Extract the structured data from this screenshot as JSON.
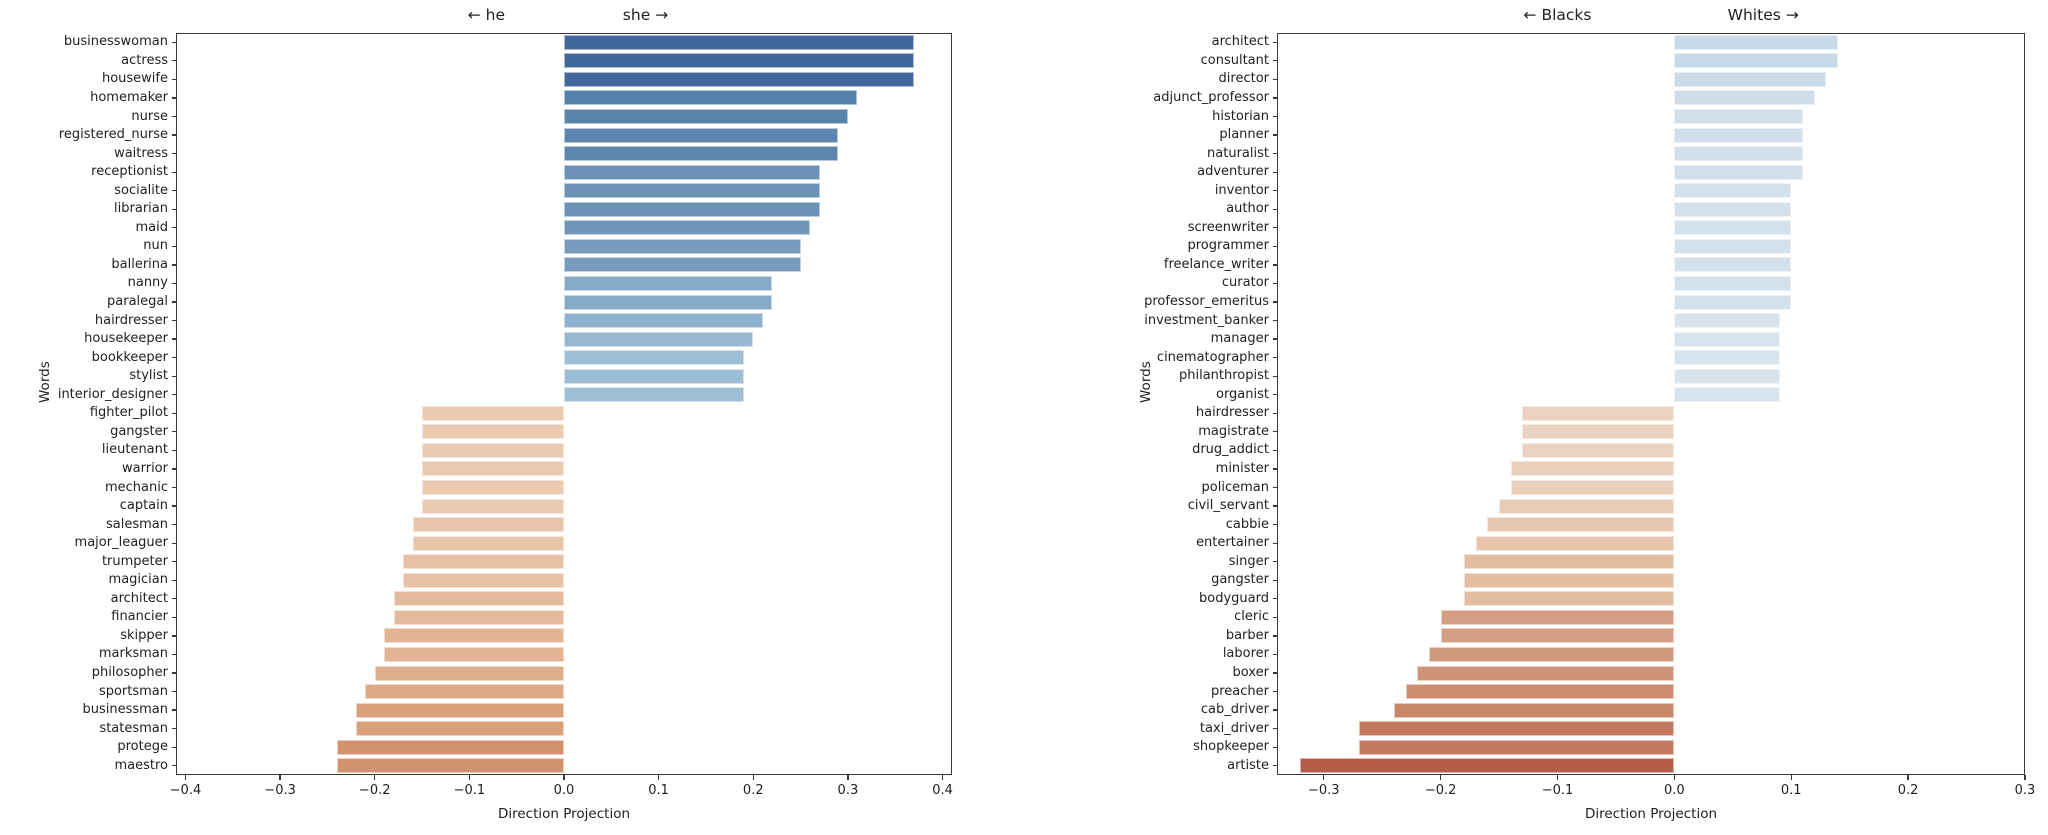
{
  "chart_data": [
    {
      "type": "bar",
      "orientation": "horizontal",
      "header_left": "← he",
      "header_right": "she →",
      "xlabel": "Direction Projection",
      "ylabel": "Words",
      "xlim": [
        -0.41,
        0.41
      ],
      "grid": false,
      "xtick_values": [
        -0.4,
        -0.3,
        -0.2,
        -0.1,
        0.0,
        0.1,
        0.2,
        0.3,
        0.4
      ],
      "xtick_labels": [
        "−0.4",
        "−0.3",
        "−0.2",
        "−0.1",
        "0.0",
        "0.1",
        "0.2",
        "0.3",
        "0.4"
      ],
      "bars": [
        {
          "word": "businesswoman",
          "value": 0.37,
          "color": "#41679b"
        },
        {
          "word": "actress",
          "value": 0.37,
          "color": "#41679b"
        },
        {
          "word": "housewife",
          "value": 0.37,
          "color": "#41679b"
        },
        {
          "word": "homemaker",
          "value": 0.31,
          "color": "#5681aa"
        },
        {
          "word": "nurse",
          "value": 0.3,
          "color": "#5983ab"
        },
        {
          "word": "registered_nurse",
          "value": 0.29,
          "color": "#5d86ae"
        },
        {
          "word": "waitress",
          "value": 0.29,
          "color": "#5d86ae"
        },
        {
          "word": "receptionist",
          "value": 0.27,
          "color": "#6b92b6"
        },
        {
          "word": "socialite",
          "value": 0.27,
          "color": "#6b92b6"
        },
        {
          "word": "librarian",
          "value": 0.27,
          "color": "#6b92b6"
        },
        {
          "word": "maid",
          "value": 0.26,
          "color": "#7096b9"
        },
        {
          "word": "nun",
          "value": 0.25,
          "color": "#769bbd"
        },
        {
          "word": "ballerina",
          "value": 0.25,
          "color": "#769bbd"
        },
        {
          "word": "nanny",
          "value": 0.22,
          "color": "#87aac8"
        },
        {
          "word": "paralegal",
          "value": 0.22,
          "color": "#87aac8"
        },
        {
          "word": "hairdresser",
          "value": 0.21,
          "color": "#8fb1cd"
        },
        {
          "word": "housekeeper",
          "value": 0.2,
          "color": "#97b8d2"
        },
        {
          "word": "bookkeeper",
          "value": 0.19,
          "color": "#9ebed6"
        },
        {
          "word": "stylist",
          "value": 0.19,
          "color": "#9ebed6"
        },
        {
          "word": "interior_designer",
          "value": 0.19,
          "color": "#9ebed6"
        },
        {
          "word": "fighter_pilot",
          "value": -0.15,
          "color": "#ecc9b1"
        },
        {
          "word": "gangster",
          "value": -0.15,
          "color": "#ecc9b1"
        },
        {
          "word": "lieutenant",
          "value": -0.15,
          "color": "#ecc9b1"
        },
        {
          "word": "warrior",
          "value": -0.15,
          "color": "#ecc9b1"
        },
        {
          "word": "mechanic",
          "value": -0.15,
          "color": "#ecc9b1"
        },
        {
          "word": "captain",
          "value": -0.15,
          "color": "#ecc9b1"
        },
        {
          "word": "salesman",
          "value": -0.16,
          "color": "#eac4aa"
        },
        {
          "word": "major_leaguer",
          "value": -0.16,
          "color": "#eac4aa"
        },
        {
          "word": "trumpeter",
          "value": -0.17,
          "color": "#e8c0a4"
        },
        {
          "word": "magician",
          "value": -0.17,
          "color": "#e8c0a4"
        },
        {
          "word": "architect",
          "value": -0.18,
          "color": "#e5ba9c"
        },
        {
          "word": "financier",
          "value": -0.18,
          "color": "#e5ba9c"
        },
        {
          "word": "skipper",
          "value": -0.19,
          "color": "#e2b494"
        },
        {
          "word": "marksman",
          "value": -0.19,
          "color": "#e2b494"
        },
        {
          "word": "philosopher",
          "value": -0.2,
          "color": "#dfae8c"
        },
        {
          "word": "sportsman",
          "value": -0.21,
          "color": "#dca886"
        },
        {
          "word": "businessman",
          "value": -0.22,
          "color": "#d9a07c"
        },
        {
          "word": "statesman",
          "value": -0.22,
          "color": "#d9a07c"
        },
        {
          "word": "protege",
          "value": -0.24,
          "color": "#d29270"
        },
        {
          "word": "maestro",
          "value": -0.24,
          "color": "#d29270"
        }
      ]
    },
    {
      "type": "bar",
      "orientation": "horizontal",
      "header_left": "← Blacks",
      "header_right": "Whites →",
      "xlabel": "Direction Projection",
      "ylabel": "Words",
      "xlim": [
        -0.34,
        0.3
      ],
      "grid": false,
      "xtick_values": [
        -0.3,
        -0.2,
        -0.1,
        0.0,
        0.1,
        0.2,
        0.3
      ],
      "xtick_labels": [
        "−0.3",
        "−0.2",
        "−0.1",
        "0.0",
        "0.1",
        "0.2",
        "0.3"
      ],
      "bars": [
        {
          "word": "architect",
          "value": 0.14,
          "color": "#c8d9e7"
        },
        {
          "word": "consultant",
          "value": 0.14,
          "color": "#c8d9e7"
        },
        {
          "word": "director",
          "value": 0.13,
          "color": "#cbdbe8"
        },
        {
          "word": "adjunct_professor",
          "value": 0.12,
          "color": "#cedde9"
        },
        {
          "word": "historian",
          "value": 0.11,
          "color": "#d0dfeb"
        },
        {
          "word": "planner",
          "value": 0.11,
          "color": "#d0dfeb"
        },
        {
          "word": "naturalist",
          "value": 0.11,
          "color": "#d0dfeb"
        },
        {
          "word": "adventurer",
          "value": 0.11,
          "color": "#d0dfeb"
        },
        {
          "word": "inventor",
          "value": 0.1,
          "color": "#d3e1ec"
        },
        {
          "word": "author",
          "value": 0.1,
          "color": "#d3e1ec"
        },
        {
          "word": "screenwriter",
          "value": 0.1,
          "color": "#d3e1ec"
        },
        {
          "word": "programmer",
          "value": 0.1,
          "color": "#d3e1ec"
        },
        {
          "word": "freelance_writer",
          "value": 0.1,
          "color": "#d3e1ec"
        },
        {
          "word": "curator",
          "value": 0.1,
          "color": "#d3e1ec"
        },
        {
          "word": "professor_emeritus",
          "value": 0.1,
          "color": "#d3e1ec"
        },
        {
          "word": "investment_banker",
          "value": 0.09,
          "color": "#d7e4ee"
        },
        {
          "word": "manager",
          "value": 0.09,
          "color": "#d7e4ee"
        },
        {
          "word": "cinematographer",
          "value": 0.09,
          "color": "#d7e4ee"
        },
        {
          "word": "philanthropist",
          "value": 0.09,
          "color": "#d7e4ee"
        },
        {
          "word": "organist",
          "value": 0.09,
          "color": "#d7e4ee"
        },
        {
          "word": "hairdresser",
          "value": -0.13,
          "color": "#ecd3c1"
        },
        {
          "word": "magistrate",
          "value": -0.13,
          "color": "#ecd3c1"
        },
        {
          "word": "drug_addict",
          "value": -0.13,
          "color": "#ecd3c1"
        },
        {
          "word": "minister",
          "value": -0.14,
          "color": "#eacfba"
        },
        {
          "word": "policeman",
          "value": -0.14,
          "color": "#eacfba"
        },
        {
          "word": "civil_servant",
          "value": -0.15,
          "color": "#e9ccb6"
        },
        {
          "word": "cabbie",
          "value": -0.16,
          "color": "#e7c8b1"
        },
        {
          "word": "entertainer",
          "value": -0.17,
          "color": "#e6c5ac"
        },
        {
          "word": "singer",
          "value": -0.18,
          "color": "#e3bda2"
        },
        {
          "word": "gangster",
          "value": -0.18,
          "color": "#e3bda2"
        },
        {
          "word": "bodyguard",
          "value": -0.18,
          "color": "#e3bda2"
        },
        {
          "word": "cleric",
          "value": -0.2,
          "color": "#d39e84"
        },
        {
          "word": "barber",
          "value": -0.2,
          "color": "#d39e84"
        },
        {
          "word": "laborer",
          "value": -0.21,
          "color": "#d0987c"
        },
        {
          "word": "boxer",
          "value": -0.22,
          "color": "#ce9276"
        },
        {
          "word": "preacher",
          "value": -0.23,
          "color": "#cc8d70"
        },
        {
          "word": "cab_driver",
          "value": -0.24,
          "color": "#ca886a"
        },
        {
          "word": "taxi_driver",
          "value": -0.27,
          "color": "#c3795d"
        },
        {
          "word": "shopkeeper",
          "value": -0.27,
          "color": "#c3795d"
        },
        {
          "word": "artiste",
          "value": -0.32,
          "color": "#b65c48"
        }
      ]
    }
  ]
}
